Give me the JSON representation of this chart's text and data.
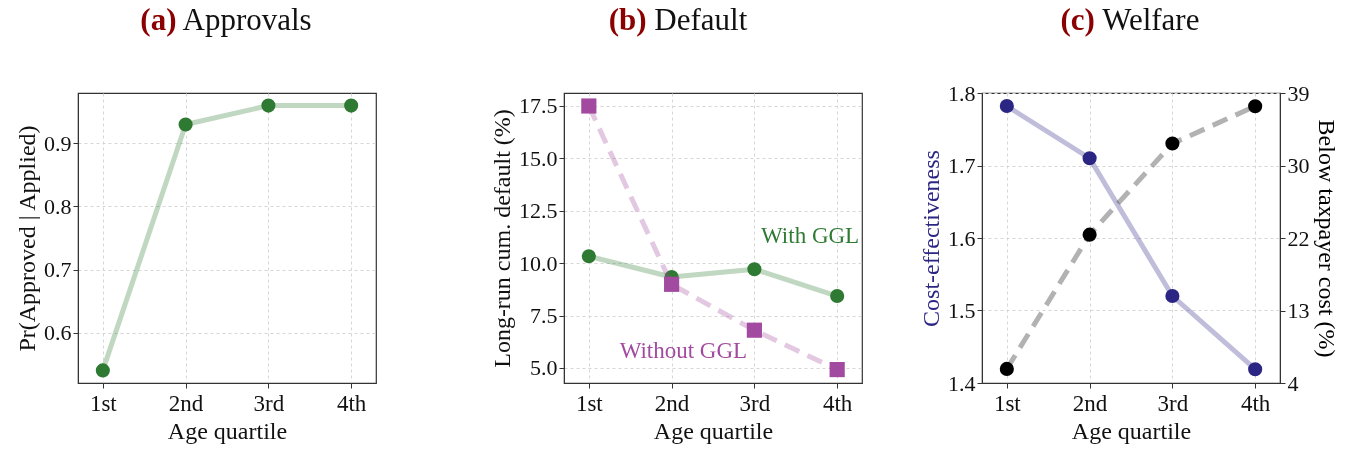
{
  "chart_data": [
    {
      "type": "line",
      "title": "(a) Approvals",
      "xlabel": "Age quartile",
      "ylabel": "Pr(Approved | Applied)",
      "categories": [
        "1st",
        "2nd",
        "3rd",
        "4th"
      ],
      "series": [
        {
          "color": "#2f7a33",
          "values": [
            0.54,
            0.93,
            0.96,
            0.96
          ]
        }
      ],
      "ylim": [
        0.52,
        0.98
      ],
      "yticks": [
        0.6,
        0.7,
        0.8,
        0.9
      ],
      "grid": true,
      "marker": "circle",
      "line_style": "solid"
    },
    {
      "type": "line",
      "title": "(b) Default",
      "xlabel": "Age quartile",
      "ylabel": "Long-run cum. default (%)",
      "categories": [
        "1st",
        "2nd",
        "3rd",
        "4th"
      ],
      "series": [
        {
          "name": "With GGL",
          "color": "#2f7a33",
          "values": [
            10.33,
            9.34,
            9.71,
            8.43
          ],
          "marker": "circle",
          "line_style": "solid"
        },
        {
          "name": "Without GGL",
          "color": "#a24a9f",
          "values": [
            17.5,
            8.99,
            6.8,
            4.92
          ],
          "marker": "square",
          "line_style": "dashed"
        }
      ],
      "ylim": [
        4.28,
        18.12
      ],
      "yticks": [
        {
          "value": 5,
          "label": "5.0"
        },
        7.5,
        {
          "value": 10,
          "label": "10.0"
        },
        12.5,
        {
          "value": 15,
          "label": "15.0"
        },
        17.5
      ],
      "grid": true
    },
    {
      "type": "line",
      "title": "(c) Welfare",
      "xlabel": "Age quartile",
      "ylabel": "Cost-effectiveness",
      "y2label": "Below taxpayer cost (%)",
      "categories": [
        "1st",
        "2nd",
        "3rd",
        "4th"
      ],
      "series": [
        {
          "color": "#2b2583",
          "values": [
            1.782,
            1.71,
            1.52,
            1.419
          ],
          "line_style": "solid"
        },
        {
          "color": "#000000",
          "values": [
            5.7,
            21.9,
            32.9,
            37.4
          ],
          "axis": "y2",
          "line_style": "dashed"
        }
      ],
      "ylim": [
        1.4,
        1.8
      ],
      "yticks": [
        1.4,
        1.5,
        1.6,
        1.7,
        1.8
      ],
      "y2lim": [
        4,
        39
      ],
      "y2ticks": [
        4,
        {
          "value": 12.75,
          "label": "13"
        },
        {
          "value": 21.5,
          "label": "22"
        },
        {
          "value": 30.25,
          "label": "30"
        },
        39
      ],
      "grid": true,
      "marker": "circle"
    }
  ]
}
